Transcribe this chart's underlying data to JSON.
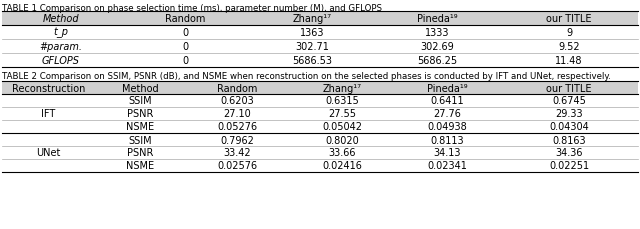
{
  "table1_caption": "TABLE 1 Comparison on phase selection time (ms), parameter number (M), and GFLOPS",
  "table1_header": [
    "Method",
    "Random",
    "Zhang¹⁷",
    "Pineda¹⁹",
    "our TITLE"
  ],
  "table1_rows": [
    [
      "t_p",
      "0",
      "1363",
      "1333",
      "9"
    ],
    [
      "#param.",
      "0",
      "302.71",
      "302.69",
      "9.52"
    ],
    [
      "GFLOPS",
      "0",
      "5686.53",
      "5686.25",
      "11.48"
    ]
  ],
  "table2_caption": "TABLE 2 Comparison on SSIM, PSNR (dB), and NSME when reconstruction on the selected phases is conducted by IFT and UNet, respectively.",
  "table2_header": [
    "Reconstruction",
    "Method",
    "Random",
    "Zhang¹⁷",
    "Pineda¹⁹",
    "our TITLE"
  ],
  "table2_rows": [
    [
      "IFT",
      "SSIM",
      "0.6203",
      "0.6315",
      "0.6411",
      "0.6745"
    ],
    [
      "IFT",
      "PSNR",
      "27.10",
      "27.55",
      "27.76",
      "29.33"
    ],
    [
      "IFT",
      "NSME",
      "0.05276",
      "0.05042",
      "0.04938",
      "0.04304"
    ],
    [
      "UNet",
      "SSIM",
      "0.7962",
      "0.8020",
      "0.8113",
      "0.8163"
    ],
    [
      "UNet",
      "PSNR",
      "33.42",
      "33.66",
      "34.13",
      "34.36"
    ],
    [
      "UNet",
      "NSME",
      "0.02576",
      "0.02416",
      "0.02341",
      "0.02251"
    ]
  ],
  "header_bg": "#d0d0d0",
  "row_bg_alt": "#f0f0f0",
  "row_bg_white": "#ffffff",
  "font_size": 7.0,
  "caption_font_size": 6.2
}
